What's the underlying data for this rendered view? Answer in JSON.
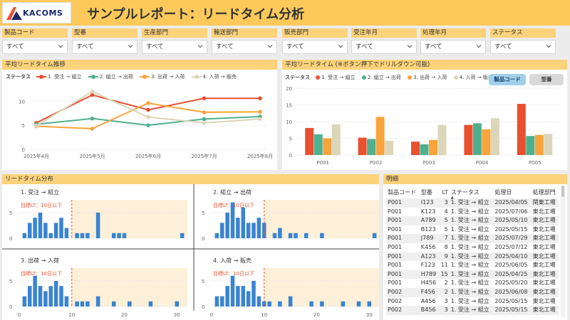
{
  "header": {
    "logo_text": "KACOMS",
    "title": "サンプルレポート：リードタイム分析"
  },
  "filters": [
    {
      "label": "製品コード",
      "value": "すべて"
    },
    {
      "label": "型番",
      "value": "すべて"
    },
    {
      "label": "生産部門",
      "value": "すべて"
    },
    {
      "label": "輸送部門",
      "value": "すべて"
    },
    {
      "label": "販売部門",
      "value": "すべて"
    },
    {
      "label": "受注年月",
      "value": "すべて"
    },
    {
      "label": "処理年月",
      "value": "すべて"
    },
    {
      "label": "ステータス",
      "value": "すべて"
    }
  ],
  "colors": {
    "s1": "#e8502f",
    "s2": "#4fb08e",
    "s3": "#f8a33c",
    "s4": "#dcd6b8",
    "hist": "#3a84d0",
    "target": "#e8502f",
    "shade": "#fdf0d8"
  },
  "trend": {
    "title": "平均リードタイム推移",
    "legend_label": "ステータス",
    "series_names": [
      "1. 受注 → 組立",
      "2. 組立 → 出荷",
      "3. 出荷 → 入荷",
      "4. 入荷 → 販売"
    ]
  },
  "bar": {
    "title": "平均リードタイム (※ボタン押下でドリルダウン可能)",
    "legend_label": "ステータス",
    "btn_product": "製品コード",
    "btn_model": "型番"
  },
  "dist": {
    "title": "リードタイム分布",
    "target_label": "目標LT：10日以下",
    "panels": [
      {
        "label": "1. 受注 → 組立"
      },
      {
        "label": "2. 組立 → 出荷"
      },
      {
        "label": "3. 出荷 → 入荷"
      },
      {
        "label": "4. 入荷 → 販売"
      }
    ],
    "x_ticks": [
      "0",
      "10",
      "20",
      "30"
    ],
    "y_ticks": [
      "0",
      "5"
    ]
  },
  "detail": {
    "title": "明細",
    "columns": [
      "製品コード",
      "型番",
      "LT",
      "ステータス",
      "処理日",
      "処理部門"
    ],
    "rows": [
      [
        "P001",
        "I123",
        "3",
        "1. 受注 → 組立",
        "2025/04/05",
        "関東工場"
      ],
      [
        "P001",
        "K123",
        "4",
        "1. 受注 → 組立",
        "2025/07/06",
        "東北工場"
      ],
      [
        "P001",
        "A789",
        "5",
        "1. 受注 → 組立",
        "2025/05/10",
        "東北工場"
      ],
      [
        "P001",
        "B123",
        "5",
        "1. 受注 → 組立",
        "2025/05/15",
        "東北工場"
      ],
      [
        "P001",
        "J789",
        "7",
        "1. 受注 → 組立",
        "2025/07/29",
        "東北工場"
      ],
      [
        "P001",
        "K456",
        "8",
        "1. 受注 → 組立",
        "2025/07/12",
        "東北工場"
      ],
      [
        "P001",
        "A123",
        "9",
        "1. 受注 → 組立",
        "2025/04/10",
        "東北工場"
      ],
      [
        "P001",
        "F123",
        "11",
        "1. 受注 → 組立",
        "2025/06/05",
        "東北工場"
      ],
      [
        "P001",
        "H789",
        "15",
        "1. 受注 → 組立",
        "2025/04/25",
        "東北工場"
      ],
      [
        "P001",
        "H456",
        "2",
        "1. 受注 → 組立",
        "2025/05/20",
        "東北工場"
      ],
      [
        "P002",
        "F456",
        "2",
        "1. 受注 → 組立",
        "2025/06/08",
        "東北工場"
      ],
      [
        "P002",
        "A456",
        "3",
        "1. 受注 → 組立",
        "2025/05/15",
        "東北工場"
      ],
      [
        "P002",
        "B456",
        "3",
        "1. 受注 → 組立",
        "2025/05/15",
        "東北工場"
      ]
    ]
  },
  "chart_data": [
    {
      "type": "line",
      "title": "平均リードタイム推移",
      "categories": [
        "2025年4月",
        "2025年5月",
        "2025年6月",
        "2025年7月",
        "2025年8月"
      ],
      "ylim": [
        0,
        13
      ],
      "y_ticks": [
        0,
        5,
        10
      ],
      "series": [
        {
          "name": "1. 受注 → 組立",
          "values": [
            5.5,
            11.3,
            8.2,
            10.6,
            10.6
          ]
        },
        {
          "name": "2. 組立 → 出荷",
          "values": [
            5.2,
            6.4,
            5.0,
            6.3,
            6.8
          ]
        },
        {
          "name": "3. 出荷 → 入荷",
          "values": [
            4.8,
            4.3,
            9.6,
            7.7,
            7.8
          ]
        },
        {
          "name": "4. 入荷 → 販売",
          "values": [
            4.9,
            12.0,
            6.7,
            5.5,
            6.3
          ]
        }
      ]
    },
    {
      "type": "bar",
      "title": "平均リードタイム (※ボタン押下でドリルダウン可能)",
      "categories": [
        "P001",
        "P002",
        "P003",
        "P004",
        "P005"
      ],
      "ylim": [
        0,
        20
      ],
      "y_ticks": [
        0,
        5,
        10,
        15,
        20
      ],
      "series": [
        {
          "name": "1. 受注 → 組立",
          "values": [
            8.1,
            5.2,
            4.0,
            9.0,
            15.3
          ]
        },
        {
          "name": "2. 組立 → 出荷",
          "values": [
            6.2,
            4.8,
            3.2,
            9.5,
            5.7
          ]
        },
        {
          "name": "3. 出荷 → 入荷",
          "values": [
            5.0,
            11.4,
            4.5,
            7.7,
            6.0
          ]
        },
        {
          "name": "4. 入荷 → 販売",
          "values": [
            9.2,
            4.3,
            9.0,
            11.0,
            6.3
          ]
        }
      ]
    },
    {
      "type": "bar",
      "title": "1. 受注 → 組立",
      "x": [
        1,
        2,
        3,
        4,
        5,
        6,
        7,
        8,
        9,
        11,
        12,
        13,
        15,
        18,
        19,
        20,
        31
      ],
      "values": [
        1,
        3,
        4,
        5,
        3,
        1,
        3,
        4,
        2,
        1,
        1,
        1,
        5,
        1,
        1,
        1,
        1
      ],
      "xlim": [
        0,
        32
      ],
      "ylim": [
        0,
        7.5
      ]
    },
    {
      "type": "bar",
      "title": "2. 組立 → 出荷",
      "x": [
        1,
        2,
        3,
        4,
        5,
        6,
        7,
        8,
        9,
        10,
        12,
        13,
        15,
        16,
        18,
        21,
        31
      ],
      "values": [
        1,
        3,
        5,
        7,
        4,
        6,
        3,
        3,
        4,
        3,
        1,
        2,
        1,
        1,
        1,
        1,
        1
      ],
      "xlim": [
        0,
        32
      ],
      "ylim": [
        0,
        7.5
      ]
    },
    {
      "type": "bar",
      "title": "3. 出荷 → 入荷",
      "x": [
        1,
        2,
        3,
        4,
        5,
        6,
        7,
        8,
        9,
        11,
        12,
        13,
        15,
        18,
        21,
        25,
        30
      ],
      "values": [
        2,
        4,
        6,
        4,
        3,
        4,
        5,
        4,
        2,
        1,
        1,
        1,
        2,
        1,
        1,
        1,
        1
      ],
      "xlim": [
        0,
        32
      ],
      "ylim": [
        0,
        7.5
      ]
    },
    {
      "type": "bar",
      "title": "4. 入荷 → 販売",
      "x": [
        1,
        2,
        3,
        4,
        5,
        6,
        7,
        8,
        9,
        10,
        11,
        13,
        15,
        19,
        21,
        25,
        28,
        30
      ],
      "values": [
        2,
        2,
        4,
        6,
        4,
        4,
        3,
        5,
        2,
        1,
        1,
        1,
        2,
        1,
        1,
        1,
        1,
        1
      ],
      "xlim": [
        0,
        32
      ],
      "ylim": [
        0,
        7.5
      ]
    }
  ]
}
